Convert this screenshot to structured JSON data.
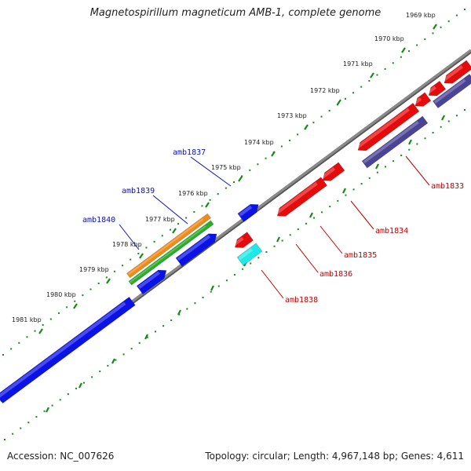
{
  "title": "Magnetospirillum magneticum AMB-1, complete genome",
  "footer": {
    "accession": "Accession: NC_007626",
    "summary": "Topology: circular; Length: 4,967,148 bp; Genes: 4,611"
  },
  "colors": {
    "plus_strand": "#0b12e6",
    "minus_strand": "#e60b0b",
    "minus_strand_dark": "#4a4396",
    "orange": "#f08a18",
    "green": "#2aad2a",
    "cyan": "#1ee8e8",
    "backbone": "#8a8a8a",
    "tick": "#178a17",
    "plus_label": "#0b12b8",
    "minus_label": "#c00000"
  },
  "ticks": [
    {
      "label": "1969 kbp"
    },
    {
      "label": "1970 kbp"
    },
    {
      "label": "1971 kbp"
    },
    {
      "label": "1972 kbp"
    },
    {
      "label": "1973 kbp"
    },
    {
      "label": "1974 kbp"
    },
    {
      "label": "1975 kbp"
    },
    {
      "label": "1976 kbp"
    },
    {
      "label": "1977 kbp"
    },
    {
      "label": "1978 kbp"
    },
    {
      "label": "1979 kbp"
    },
    {
      "label": "1980 kbp"
    },
    {
      "label": "1981 kbp"
    }
  ],
  "gene_labels": [
    {
      "name": "amb1837",
      "strand": "plus"
    },
    {
      "name": "amb1839",
      "strand": "plus"
    },
    {
      "name": "amb1840",
      "strand": "plus"
    },
    {
      "name": "amb1833",
      "strand": "minus"
    },
    {
      "name": "amb1834",
      "strand": "minus"
    },
    {
      "name": "amb1835",
      "strand": "minus"
    },
    {
      "name": "amb1836",
      "strand": "minus"
    },
    {
      "name": "amb1838",
      "strand": "minus"
    }
  ]
}
